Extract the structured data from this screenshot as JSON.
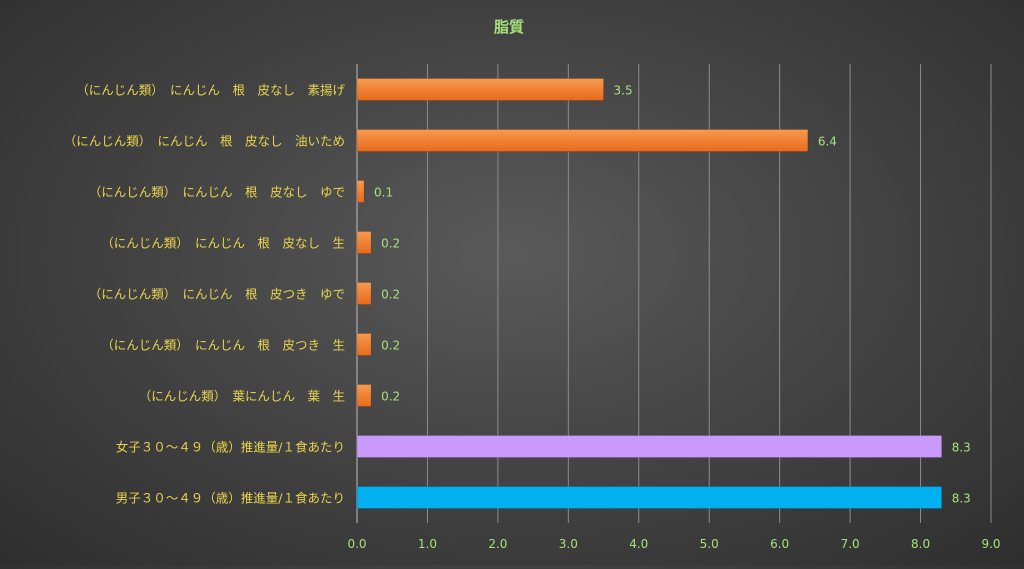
{
  "chart_data": {
    "type": "bar",
    "orientation": "horizontal",
    "title": "脂質",
    "categories": [
      "（にんじん類）　にんじん　根　皮なし　素揚げ",
      "（にんじん類）　にんじん　根　皮なし　油いため",
      "（にんじん類）　にんじん　根　皮なし　ゆで",
      "（にんじん類）　にんじん　根　皮なし　生",
      "（にんじん類）　にんじん　根　皮つき　ゆで",
      "（にんじん類）　にんじん　根　皮つき　生",
      "（にんじん類）　葉にんじん　葉　生",
      "女子３０～４９（歳）推進量/１食あたり",
      "男子３０～４９（歳）推進量/１食あたり"
    ],
    "values": [
      3.5,
      6.4,
      0.1,
      0.2,
      0.2,
      0.2,
      0.2,
      8.3,
      8.3
    ],
    "value_labels": [
      "3.5",
      "6.4",
      "0.1",
      "0.2",
      "0.2",
      "0.2",
      "0.2",
      "8.3",
      "8.3"
    ],
    "bar_colors": [
      "#f07a2c",
      "#f07a2c",
      "#f07a2c",
      "#f07a2c",
      "#f07a2c",
      "#f07a2c",
      "#f07a2c",
      "#c99afb",
      "#00b0f0"
    ],
    "xlim": [
      0,
      9
    ],
    "x_ticks": [
      "0.0",
      "1.0",
      "2.0",
      "3.0",
      "4.0",
      "5.0",
      "6.0",
      "7.0",
      "8.0",
      "9.0"
    ],
    "grid": true,
    "legend": "none",
    "colors": {
      "title": "#a6e07a",
      "category_label": "#e8d44d",
      "value_label": "#a6e07a",
      "tick_label": "#a6e07a",
      "gridline": "#8c8c8c"
    }
  }
}
